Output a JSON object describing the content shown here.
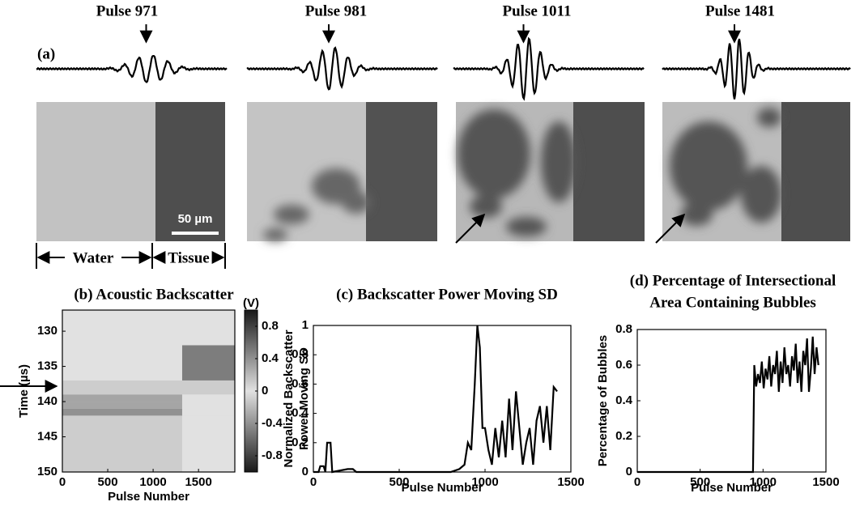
{
  "panel_a": {
    "label": "(a)",
    "pulses": [
      "Pulse 971",
      "Pulse 981",
      "Pulse 1011",
      "Pulse 1481"
    ],
    "scale_bar": "50 µm",
    "water": "Water",
    "tissue": "Tissue"
  },
  "chart_data": [
    {
      "type": "heatmap",
      "title": "(b) Acoustic Backscatter",
      "xlabel": "Pulse Number",
      "ylabel": "Time (µs)",
      "xlim": [
        0,
        1900
      ],
      "xticks": [
        0,
        500,
        1000,
        1500
      ],
      "ylim": [
        127,
        150
      ],
      "y_inverted": true,
      "yticks": [
        130,
        135,
        140,
        145,
        150
      ],
      "x_edges": [
        0,
        1320,
        1900
      ],
      "y_edges": [
        127,
        132,
        137,
        139,
        140,
        141,
        142,
        150
      ],
      "z": [
        [
          0,
          0
        ],
        [
          0,
          -0.5
        ],
        [
          0.1,
          0.1
        ],
        [
          -0.3,
          0
        ],
        [
          0.3,
          0
        ],
        [
          -0.4,
          0
        ],
        [
          0.1,
          0
        ]
      ],
      "clabel": "(V)",
      "clim": [
        -1,
        1
      ],
      "cticks": [
        0.8,
        0.4,
        0,
        -0.4,
        -0.8
      ]
    },
    {
      "type": "line",
      "title": "(c) Backscatter Power Moving SD",
      "xlabel": "Pulse Number",
      "ylabel": [
        "Normalized Backscatter",
        "Power Moving SD"
      ],
      "xlim": [
        0,
        1500
      ],
      "xticks": [
        0,
        500,
        1000,
        1500
      ],
      "ylim": [
        0,
        1
      ],
      "yticks": [
        0,
        0.2,
        0.4,
        0.6,
        0.8,
        1
      ],
      "color": "#000000",
      "x": [
        0,
        30,
        40,
        60,
        70,
        80,
        100,
        110,
        200,
        230,
        250,
        500,
        800,
        850,
        880,
        900,
        920,
        940,
        955,
        970,
        985,
        1000,
        1020,
        1040,
        1060,
        1080,
        1100,
        1120,
        1140,
        1160,
        1180,
        1200,
        1220,
        1240,
        1260,
        1280,
        1300,
        1320,
        1340,
        1360,
        1380,
        1400,
        1420
      ],
      "values": [
        0,
        0,
        0.04,
        0.04,
        0,
        0.2,
        0.2,
        0,
        0.02,
        0.02,
        0,
        0,
        0,
        0.02,
        0.05,
        0.2,
        0.15,
        0.6,
        1,
        0.85,
        0.3,
        0.3,
        0.15,
        0.05,
        0.3,
        0.1,
        0.35,
        0.1,
        0.5,
        0.15,
        0.55,
        0.3,
        0.05,
        0.2,
        0.3,
        0.05,
        0.35,
        0.45,
        0.2,
        0.45,
        0.15,
        0.58,
        0.55
      ]
    },
    {
      "type": "line",
      "title": [
        "(d) Percentage of Intersectional",
        "Area Containing Bubbles"
      ],
      "xlabel": "Pulse Number",
      "ylabel": "Percentage of Bubbles",
      "xlim": [
        0,
        1500
      ],
      "xticks": [
        0,
        500,
        1000,
        1500
      ],
      "ylim": [
        0,
        0.8
      ],
      "yticks": [
        0,
        0.2,
        0.4,
        0.6,
        0.8
      ],
      "color": "#000000",
      "x": [
        0,
        920,
        930,
        945,
        960,
        975,
        990,
        1005,
        1020,
        1035,
        1050,
        1065,
        1080,
        1095,
        1110,
        1125,
        1140,
        1155,
        1170,
        1185,
        1200,
        1215,
        1230,
        1245,
        1260,
        1275,
        1290,
        1305,
        1320,
        1335,
        1350,
        1365,
        1380,
        1395,
        1410,
        1425,
        1440
      ],
      "values": [
        0,
        0,
        0.6,
        0.48,
        0.55,
        0.5,
        0.62,
        0.47,
        0.58,
        0.52,
        0.65,
        0.48,
        0.6,
        0.55,
        0.68,
        0.45,
        0.62,
        0.5,
        0.7,
        0.55,
        0.6,
        0.48,
        0.65,
        0.57,
        0.72,
        0.5,
        0.62,
        0.45,
        0.68,
        0.6,
        0.75,
        0.45,
        0.58,
        0.76,
        0.55,
        0.7,
        0.6
      ]
    }
  ]
}
